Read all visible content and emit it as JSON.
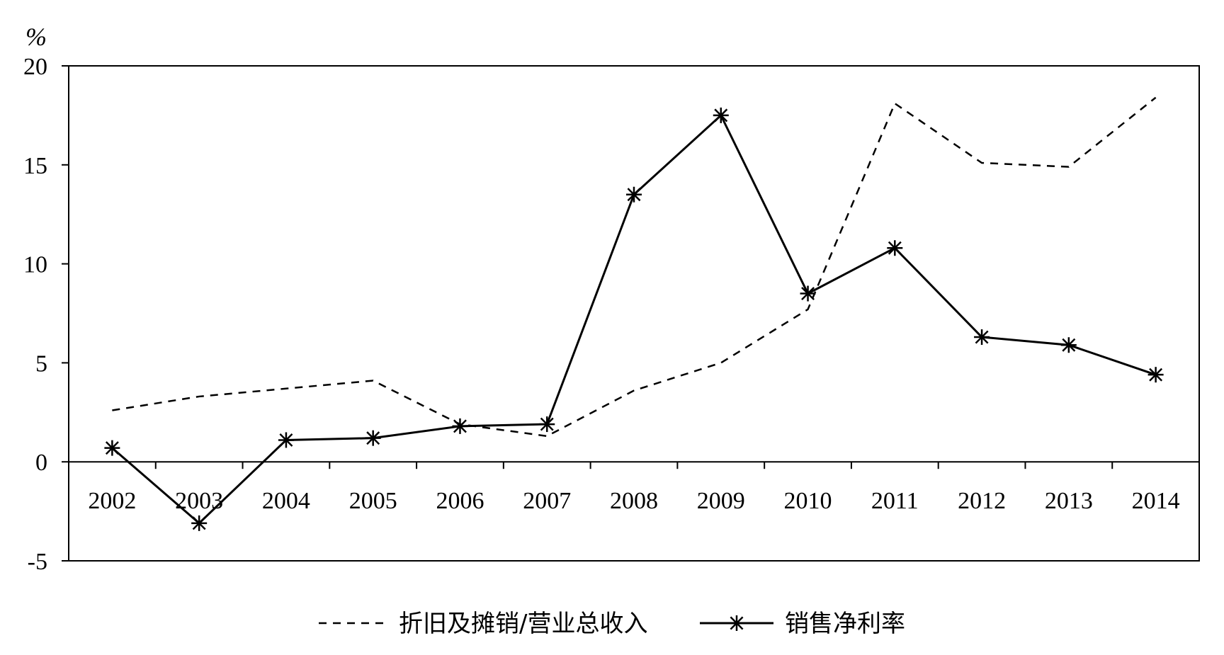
{
  "chart_data": {
    "type": "line",
    "unit_label": "%",
    "categories": [
      "2002",
      "2003",
      "2004",
      "2005",
      "2006",
      "2007",
      "2008",
      "2009",
      "2010",
      "2011",
      "2012",
      "2013",
      "2014"
    ],
    "ylim": [
      -5,
      20
    ],
    "yticks": [
      "-5",
      "0",
      "5",
      "10",
      "15",
      "20"
    ],
    "grid": false,
    "legend_position": "bottom",
    "series": [
      {
        "name": "折旧及摊销/营业总收入",
        "style": "dashed",
        "values": [
          2.6,
          3.3,
          3.7,
          4.1,
          1.9,
          1.3,
          3.6,
          5.0,
          7.7,
          18.1,
          15.1,
          14.9,
          18.4
        ]
      },
      {
        "name": "销售净利率",
        "style": "solid-asterisk",
        "values": [
          0.7,
          -3.1,
          1.1,
          1.2,
          1.8,
          1.9,
          13.5,
          17.5,
          8.5,
          10.8,
          6.3,
          5.9,
          4.4
        ]
      }
    ]
  },
  "colors": {
    "line": "#000000",
    "background": "#ffffff"
  }
}
